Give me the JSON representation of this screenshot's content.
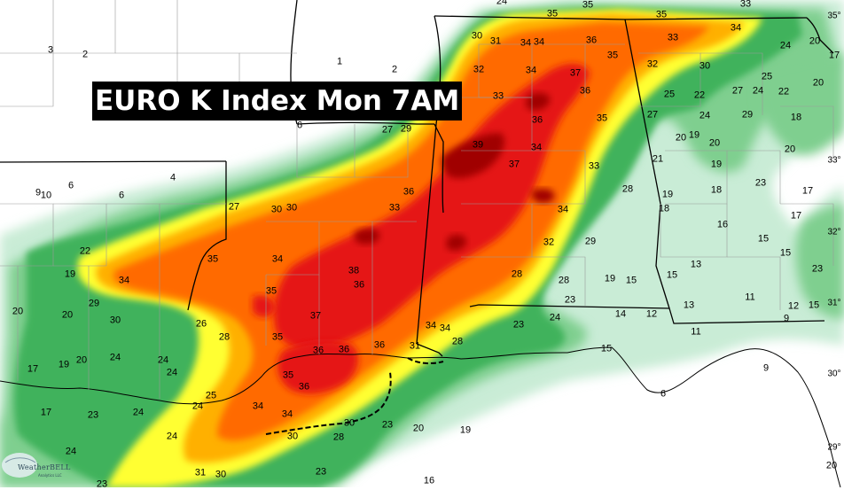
{
  "title": "EURO K Index Mon 7AM",
  "logo": {
    "name": "WeatherBELL",
    "tagline": "Analytics LLC"
  },
  "colors": {
    "k_green_light": "#c9ecd6",
    "k_green": "#7fcf8f",
    "k_green_dark": "#3fb25c",
    "k_yellow": "#ffff33",
    "k_orange_light": "#ffb000",
    "k_orange": "#ff6a00",
    "k_red": "#e51414",
    "k_darkred": "#a00000"
  },
  "value_labels": [
    {
      "t": "3"
    },
    {
      "t": "2"
    },
    {
      "t": "1"
    },
    {
      "t": "2"
    },
    {
      "t": "35"
    },
    {
      "t": "35"
    },
    {
      "t": "35"
    },
    {
      "t": "33"
    },
    {
      "t": "24"
    },
    {
      "t": "30"
    },
    {
      "t": "31"
    },
    {
      "t": "34"
    },
    {
      "t": "34"
    },
    {
      "t": "36"
    },
    {
      "t": "35"
    },
    {
      "t": "33"
    },
    {
      "t": "34"
    },
    {
      "t": "24"
    },
    {
      "t": "20"
    },
    {
      "t": "32"
    },
    {
      "t": "34"
    },
    {
      "t": "37"
    },
    {
      "t": "32"
    },
    {
      "t": "30"
    },
    {
      "t": "25"
    },
    {
      "t": "20"
    },
    {
      "t": "17"
    },
    {
      "t": "33"
    },
    {
      "t": "36"
    },
    {
      "t": "25"
    },
    {
      "t": "22"
    },
    {
      "t": "27"
    },
    {
      "t": "24"
    },
    {
      "t": "22"
    },
    {
      "t": "6"
    },
    {
      "t": "27"
    },
    {
      "t": "29"
    },
    {
      "t": "36"
    },
    {
      "t": "35"
    },
    {
      "t": "27"
    },
    {
      "t": "24"
    },
    {
      "t": "29"
    },
    {
      "t": "18"
    },
    {
      "t": "39"
    },
    {
      "t": "34"
    },
    {
      "t": "20"
    },
    {
      "t": "19"
    },
    {
      "t": "20"
    },
    {
      "t": "20"
    },
    {
      "t": "4"
    },
    {
      "t": "6"
    },
    {
      "t": "37"
    },
    {
      "t": "33"
    },
    {
      "t": "21"
    },
    {
      "t": "19"
    },
    {
      "t": "9"
    },
    {
      "t": "10"
    },
    {
      "t": "6"
    },
    {
      "t": "36"
    },
    {
      "t": "28"
    },
    {
      "t": "19"
    },
    {
      "t": "18"
    },
    {
      "t": "23"
    },
    {
      "t": "17"
    },
    {
      "t": "27"
    },
    {
      "t": "30"
    },
    {
      "t": "30"
    },
    {
      "t": "33"
    },
    {
      "t": "34"
    },
    {
      "t": "18"
    },
    {
      "t": "16"
    },
    {
      "t": "17"
    },
    {
      "t": "22"
    },
    {
      "t": "32"
    },
    {
      "t": "29"
    },
    {
      "t": "15"
    },
    {
      "t": "35"
    },
    {
      "t": "34"
    },
    {
      "t": "13"
    },
    {
      "t": "15"
    },
    {
      "t": "23"
    },
    {
      "t": "19"
    },
    {
      "t": "34"
    },
    {
      "t": "38"
    },
    {
      "t": "28"
    },
    {
      "t": "19"
    },
    {
      "t": "15"
    },
    {
      "t": "15"
    },
    {
      "t": "36"
    },
    {
      "t": "28"
    },
    {
      "t": "11"
    },
    {
      "t": "12"
    },
    {
      "t": "15"
    },
    {
      "t": "29"
    },
    {
      "t": "35"
    },
    {
      "t": "23"
    },
    {
      "t": "13"
    },
    {
      "t": "9"
    },
    {
      "t": "20"
    },
    {
      "t": "20"
    },
    {
      "t": "30"
    },
    {
      "t": "26"
    },
    {
      "t": "37"
    },
    {
      "t": "23"
    },
    {
      "t": "24"
    },
    {
      "t": "14"
    },
    {
      "t": "12"
    },
    {
      "t": "28"
    },
    {
      "t": "35"
    },
    {
      "t": "34"
    },
    {
      "t": "34"
    },
    {
      "t": "28"
    },
    {
      "t": "11"
    },
    {
      "t": "36"
    },
    {
      "t": "36"
    },
    {
      "t": "36"
    },
    {
      "t": "31"
    },
    {
      "t": "17"
    },
    {
      "t": "19"
    },
    {
      "t": "20"
    },
    {
      "t": "24"
    },
    {
      "t": "24"
    },
    {
      "t": "15"
    },
    {
      "t": "24"
    },
    {
      "t": "35"
    },
    {
      "t": "9"
    },
    {
      "t": "36"
    },
    {
      "t": "25"
    },
    {
      "t": "6"
    },
    {
      "t": "17"
    },
    {
      "t": "23"
    },
    {
      "t": "24"
    },
    {
      "t": "24"
    },
    {
      "t": "34"
    },
    {
      "t": "34"
    },
    {
      "t": "30"
    },
    {
      "t": "23"
    },
    {
      "t": "20"
    },
    {
      "t": "19"
    },
    {
      "t": "30"
    },
    {
      "t": "28"
    },
    {
      "t": "24"
    },
    {
      "t": "24"
    },
    {
      "t": "20"
    },
    {
      "t": "31"
    },
    {
      "t": "30"
    },
    {
      "t": "23"
    },
    {
      "t": "16"
    },
    {
      "t": "23"
    }
  ],
  "lat_labels": [
    "33°",
    "32°",
    "31°",
    "30°",
    "29°",
    "35°"
  ]
}
